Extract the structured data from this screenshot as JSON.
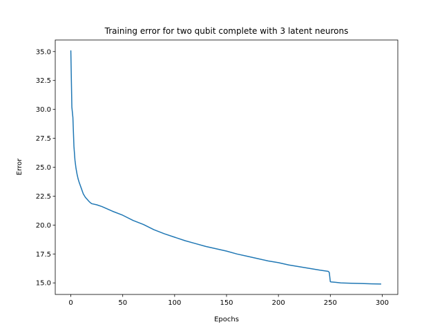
{
  "chart_data": {
    "type": "line",
    "title": "Training error for two qubit complete with 3 latent neurons",
    "xlabel": "Epochs",
    "ylabel": "Error",
    "xlim": [
      -15,
      315
    ],
    "ylim": [
      14.0,
      36.0
    ],
    "grid": false,
    "xticks": [
      0,
      50,
      100,
      150,
      200,
      250,
      300
    ],
    "yticks": [
      15.0,
      17.5,
      20.0,
      22.5,
      25.0,
      27.5,
      30.0,
      32.5,
      35.0
    ],
    "ytick_labels": [
      "15.0",
      "17.5",
      "20.0",
      "22.5",
      "25.0",
      "27.5",
      "30.0",
      "32.5",
      "35.0"
    ],
    "series": [
      {
        "color": "#1f77b4",
        "x": [
          0,
          1,
          2,
          3,
          4,
          5,
          6,
          7,
          8,
          10,
          12,
          14,
          16,
          18,
          20,
          25,
          30,
          40,
          50,
          60,
          70,
          80,
          90,
          100,
          110,
          120,
          130,
          140,
          150,
          160,
          170,
          180,
          190,
          200,
          210,
          220,
          230,
          240,
          248,
          249,
          250,
          251,
          255,
          260,
          270,
          280,
          290,
          299
        ],
        "values": [
          35.1,
          30.2,
          29.3,
          26.8,
          25.6,
          24.9,
          24.4,
          24.0,
          23.7,
          23.2,
          22.7,
          22.4,
          22.2,
          22.0,
          21.85,
          21.75,
          21.6,
          21.2,
          20.85,
          20.4,
          20.05,
          19.6,
          19.25,
          18.95,
          18.65,
          18.4,
          18.15,
          17.95,
          17.75,
          17.5,
          17.3,
          17.1,
          16.9,
          16.75,
          16.55,
          16.4,
          16.25,
          16.1,
          16.0,
          15.9,
          15.1,
          15.08,
          15.05,
          15.0,
          14.97,
          14.95,
          14.92,
          14.9
        ]
      }
    ]
  }
}
